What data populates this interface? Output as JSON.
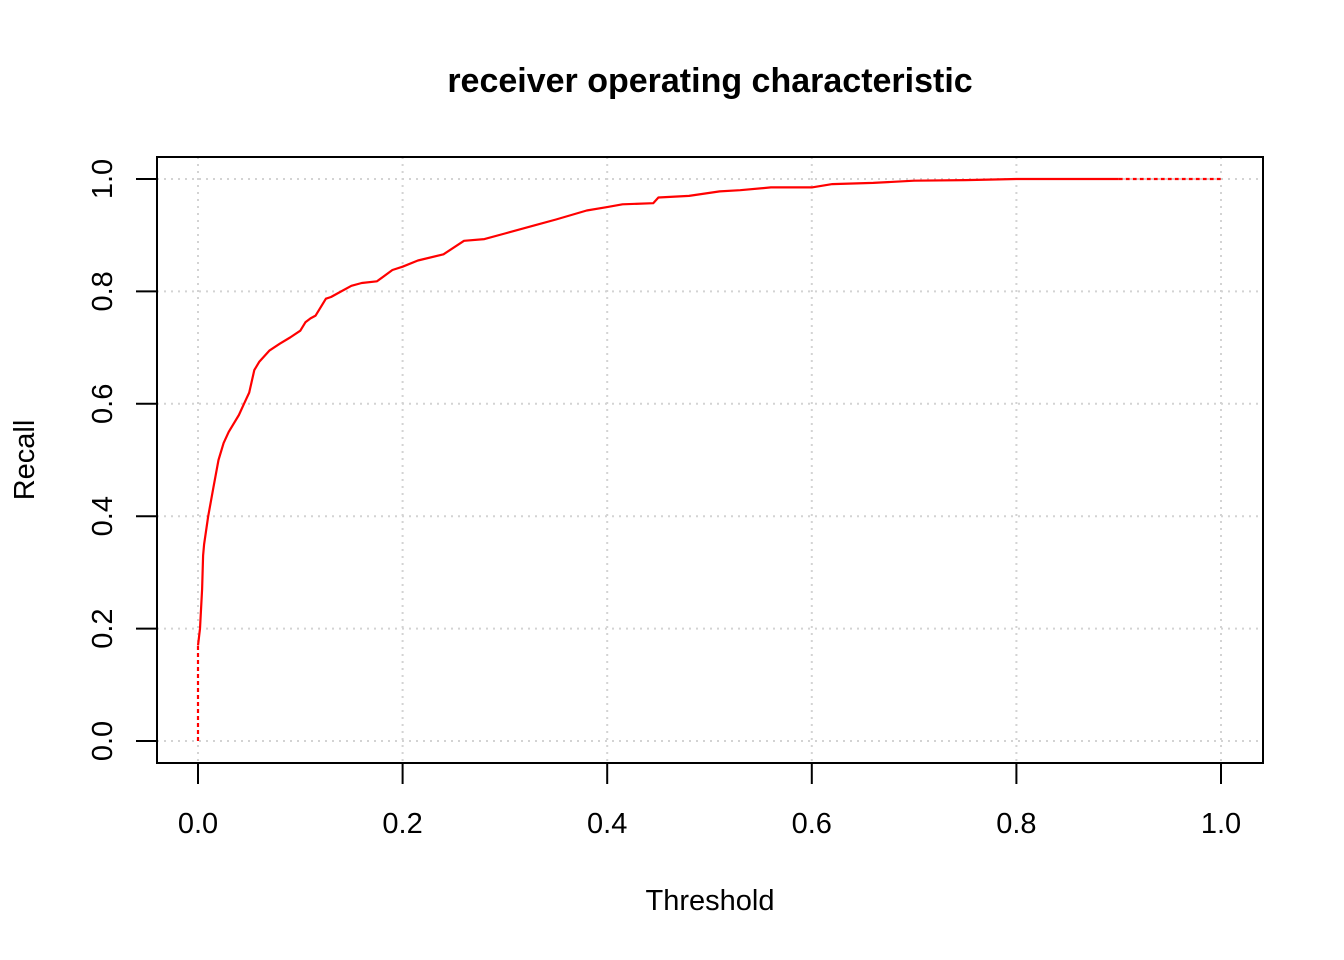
{
  "chart_data": {
    "type": "line",
    "title": "receiver operating characteristic",
    "xlabel": "Threshold",
    "ylabel": "Recall",
    "xlim": [
      0,
      1
    ],
    "ylim": [
      0,
      1
    ],
    "grid": true,
    "x_ticks": [
      "0.0",
      "0.2",
      "0.4",
      "0.6",
      "0.8",
      "1.0"
    ],
    "y_ticks": [
      "0.0",
      "0.2",
      "0.4",
      "0.6",
      "0.8",
      "1.0"
    ],
    "line_color": "#ff0000",
    "series": [
      {
        "x": [
          0.0,
          0.0,
          0.002,
          0.004,
          0.005,
          0.006,
          0.01,
          0.015,
          0.02,
          0.025,
          0.03,
          0.04,
          0.045,
          0.05,
          0.055,
          0.06,
          0.07,
          0.08,
          0.09,
          0.1,
          0.105,
          0.11,
          0.115,
          0.12,
          0.125,
          0.13,
          0.14,
          0.15,
          0.16,
          0.175,
          0.19,
          0.2,
          0.215,
          0.24,
          0.26,
          0.28,
          0.3,
          0.33,
          0.35,
          0.38,
          0.4,
          0.415,
          0.445,
          0.45,
          0.48,
          0.51,
          0.53,
          0.56,
          0.6,
          0.62,
          0.66,
          0.7,
          0.75,
          0.8,
          0.9,
          1.0
        ],
        "y": [
          0.0,
          0.17,
          0.2,
          0.27,
          0.33,
          0.35,
          0.4,
          0.45,
          0.5,
          0.53,
          0.55,
          0.58,
          0.6,
          0.62,
          0.66,
          0.675,
          0.695,
          0.707,
          0.718,
          0.73,
          0.745,
          0.752,
          0.757,
          0.772,
          0.787,
          0.79,
          0.8,
          0.81,
          0.815,
          0.818,
          0.838,
          0.844,
          0.855,
          0.866,
          0.89,
          0.893,
          0.903,
          0.918,
          0.928,
          0.944,
          0.95,
          0.955,
          0.957,
          0.967,
          0.97,
          0.978,
          0.98,
          0.985,
          0.985,
          0.991,
          0.993,
          0.997,
          0.998,
          1.0,
          1.0,
          1.0
        ]
      }
    ]
  }
}
